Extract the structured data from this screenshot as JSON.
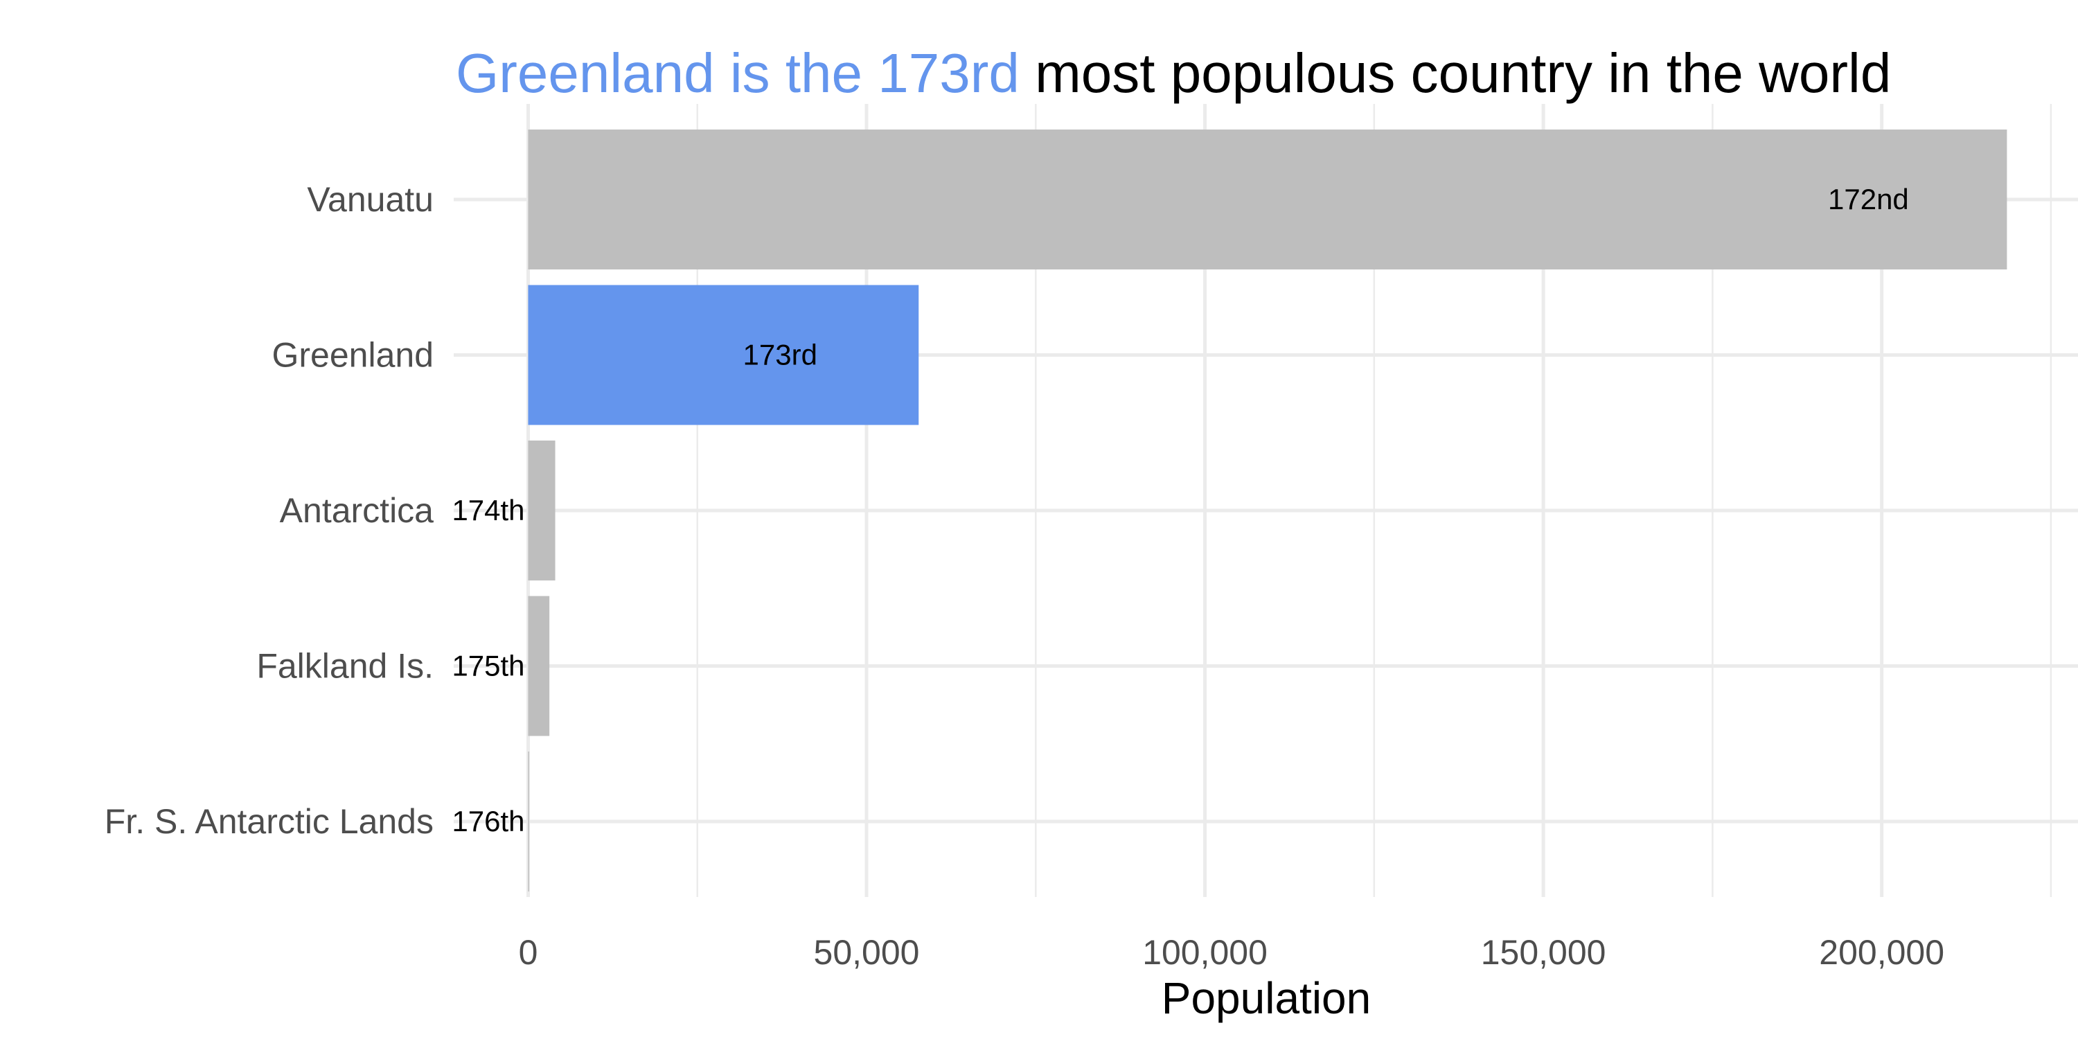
{
  "chart_data": {
    "type": "bar",
    "orientation": "horizontal",
    "title": {
      "highlight": "Greenland is the 173rd",
      "rest": " most populous country in the world",
      "highlight_color": "#6495ED"
    },
    "xlabel": "Population",
    "ylabel": "",
    "xlim": [
      -11000,
      229000
    ],
    "x_ticks": [
      0,
      50000,
      100000,
      150000,
      200000
    ],
    "x_tick_labels": [
      "0",
      "50,000",
      "100,000",
      "150,000",
      "200,000"
    ],
    "x_minor_ticks": [
      25000,
      75000,
      125000,
      175000,
      225000
    ],
    "grid": true,
    "categories": [
      "Vanuatu",
      "Greenland",
      "Antarctica",
      "Falkland Is.",
      "Fr. S. Antarctic Lands"
    ],
    "values": [
      218500,
      57700,
      4000,
      3140,
      140
    ],
    "labels": [
      "172nd",
      "173rd",
      "174th",
      "175th",
      "176th"
    ],
    "colors": [
      "#BEBEBE",
      "#6495ED",
      "#BEBEBE",
      "#BEBEBE",
      "#BEBEBE"
    ]
  }
}
